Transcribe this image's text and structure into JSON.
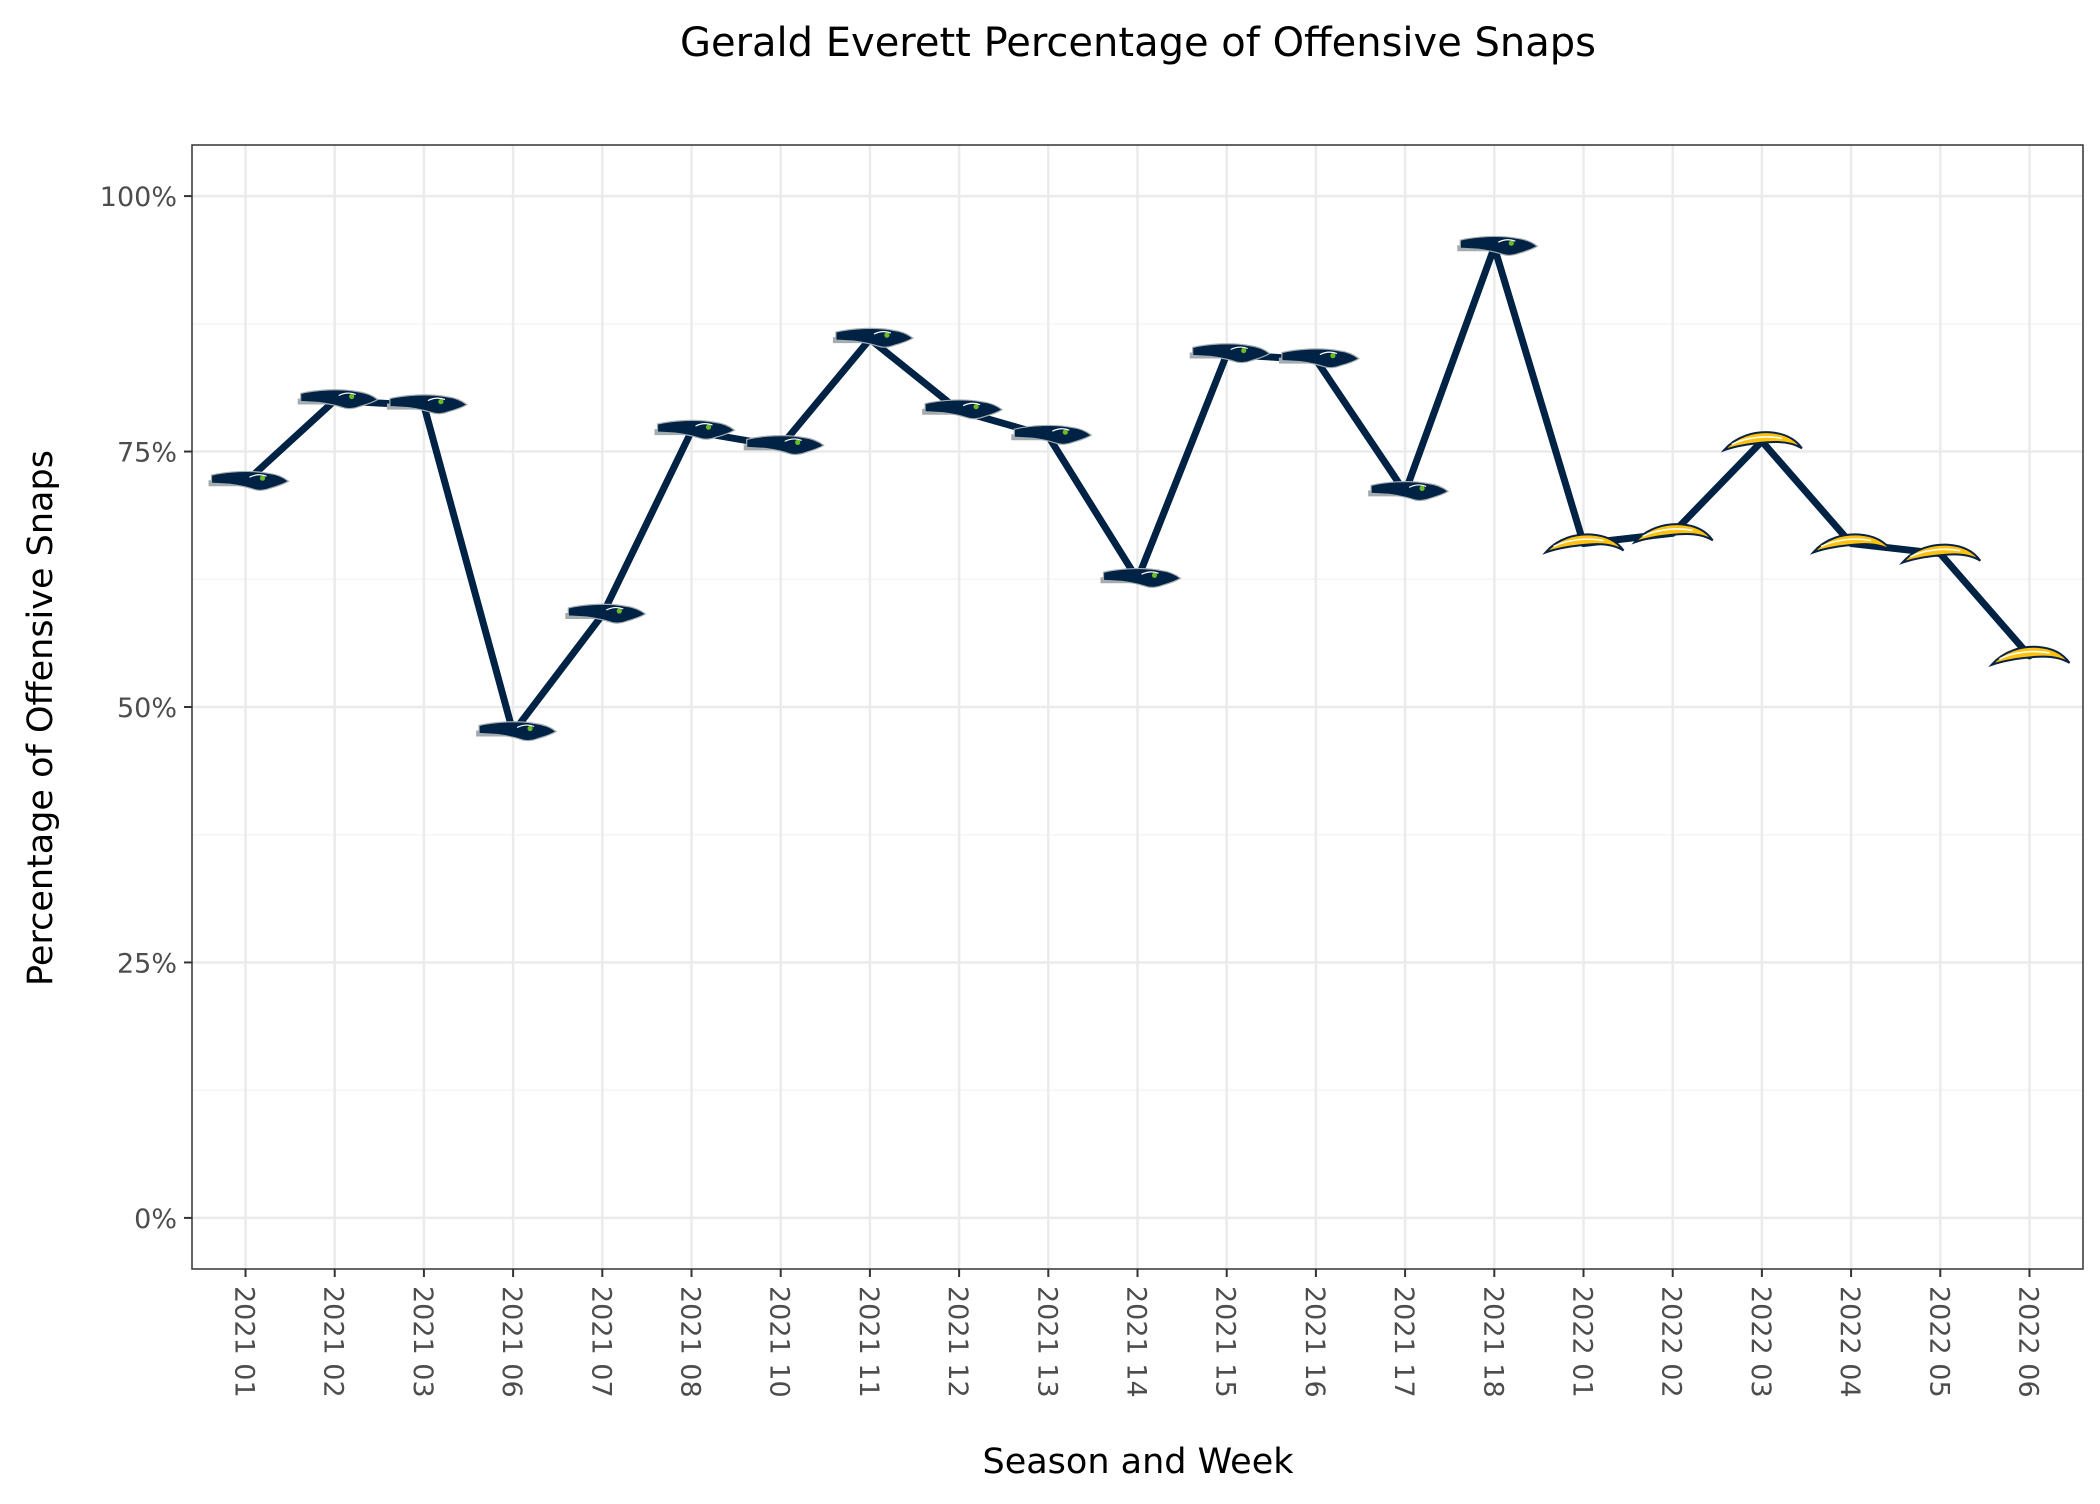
{
  "chart_data": {
    "type": "line",
    "title": "Gerald Everett Percentage of Offensive Snaps",
    "xlabel": "Season and Week",
    "ylabel": "Percentage of Offensive Snaps",
    "ylim": [
      -0.05,
      1.05
    ],
    "yticks": [
      0,
      0.25,
      0.5,
      0.75,
      1.0
    ],
    "ytick_labels": [
      "0%",
      "25%",
      "50%",
      "75%",
      "100%"
    ],
    "grid": true,
    "legend": "none",
    "categories": [
      "2021 01",
      "2021 02",
      "2021 03",
      "2021 06",
      "2021 07",
      "2021 08",
      "2021 10",
      "2021 11",
      "2021 12",
      "2021 13",
      "2021 14",
      "2021 15",
      "2021 16",
      "2021 17",
      "2021 18",
      "2022 01",
      "2022 02",
      "2022 03",
      "2022 04",
      "2022 05",
      "2022 06"
    ],
    "series": [
      {
        "values": [
          0.72,
          0.8,
          0.795,
          0.475,
          0.59,
          0.77,
          0.755,
          0.86,
          0.79,
          0.765,
          0.625,
          0.845,
          0.84,
          0.71,
          0.95,
          0.66,
          0.67,
          0.76,
          0.66,
          0.65,
          0.55
        ],
        "teams": [
          "SEA",
          "SEA",
          "SEA",
          "SEA",
          "SEA",
          "SEA",
          "SEA",
          "SEA",
          "SEA",
          "SEA",
          "SEA",
          "SEA",
          "SEA",
          "SEA",
          "SEA",
          "LAC",
          "LAC",
          "LAC",
          "LAC",
          "LAC",
          "LAC"
        ]
      }
    ],
    "colors": {
      "line": "#002244",
      "seahawks_navy": "#002244",
      "seahawks_grey": "#a5acaf",
      "seahawks_green": "#69be28",
      "chargers_gold": "#ffc20e",
      "chargers_navy": "#0a2342",
      "grid_major": "#ebebeb",
      "grid_minor": "#f5f5f5",
      "panel_border": "#333333",
      "tick_text": "#4d4d4d"
    }
  }
}
